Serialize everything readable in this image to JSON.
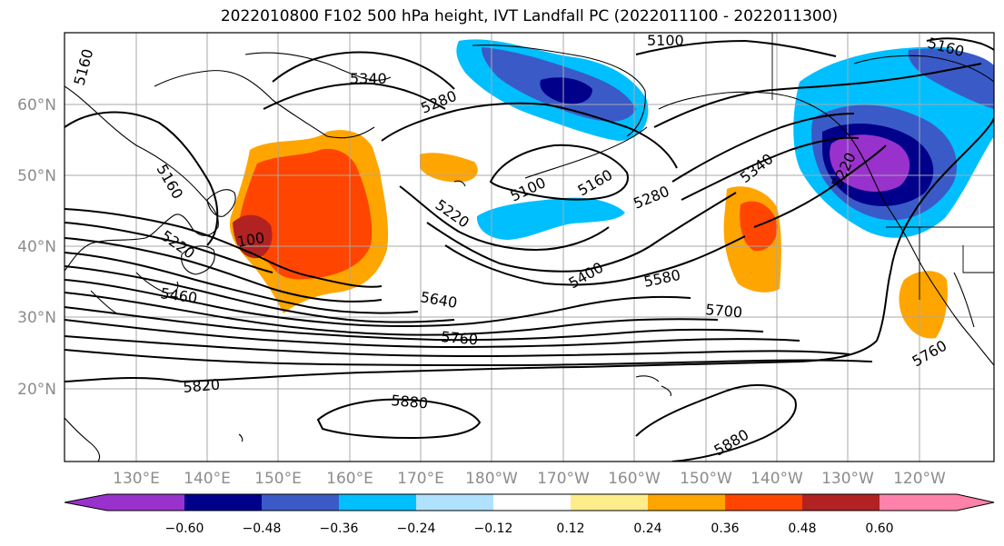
{
  "title": "2022010800 F102 500 hPa height, IVT Landfall PC (2022011100 - 2022011300)",
  "lat_labels": [
    "60°N",
    "50°N",
    "40°N",
    "30°N",
    "20°N"
  ],
  "lon_labels": [
    "130°E",
    "140°E",
    "150°E",
    "160°E",
    "170°E",
    "180°W",
    "170°W",
    "160°W",
    "150°W",
    "140°W",
    "130°W",
    "120°W"
  ],
  "contour_labels": [
    "5100",
    "5160",
    "5160",
    "5160",
    "5340",
    "5280",
    "5220",
    "5100",
    "5160",
    "5280",
    "5340",
    "5220",
    "5400",
    "5580",
    "5640",
    "5700",
    "5460",
    "5760",
    "5760",
    "5820",
    "5880",
    "5880",
    "5220",
    "100"
  ],
  "colorbar": {
    "ticks": [
      "−0.60",
      "−0.48",
      "−0.36",
      "−0.24",
      "−0.12",
      "0.12",
      "0.24",
      "0.36",
      "0.48",
      "0.60"
    ],
    "colors": [
      "#9932cc",
      "#00008b",
      "#3a5bc7",
      "#00bfff",
      "#b0e2ff",
      "#ffffff",
      "#ffec8b",
      "#ffa500",
      "#ff4500",
      "#b22222",
      "#ff82ab"
    ]
  }
}
